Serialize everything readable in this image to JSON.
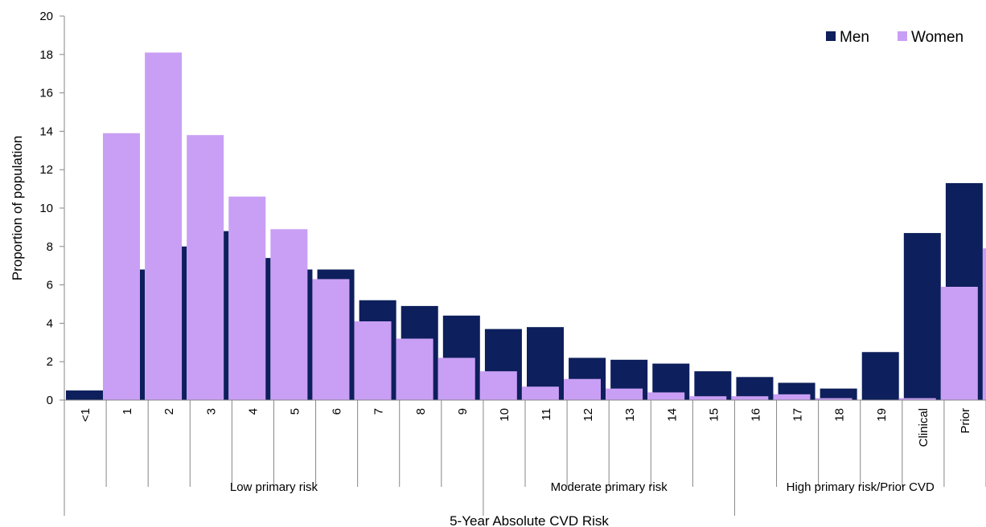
{
  "chart_data": {
    "type": "bar",
    "title": "",
    "xlabel": "5-Year Absolute CVD Risk",
    "ylabel": "Proportion of population",
    "ylim": [
      0,
      20
    ],
    "yticks": [
      0,
      2,
      4,
      6,
      8,
      10,
      12,
      14,
      16,
      18,
      20
    ],
    "grid": false,
    "legend_position": "top-right",
    "categories": [
      "<1",
      "1",
      "2",
      "3",
      "4",
      "5",
      "6",
      "7",
      "8",
      "9",
      "10",
      "11",
      "12",
      "13",
      "14",
      "15",
      "16",
      "17",
      "18",
      "19",
      "Clinical",
      "Prior"
    ],
    "series": [
      {
        "name": "Men",
        "color": "#0d1f5c",
        "values": [
          0.5,
          6.8,
          8.0,
          8.8,
          7.4,
          6.8,
          6.8,
          5.2,
          4.9,
          4.4,
          3.7,
          3.8,
          2.2,
          2.1,
          1.9,
          1.5,
          1.2,
          0.9,
          0.6,
          2.5,
          8.7,
          11.3
        ]
      },
      {
        "name": "Women",
        "color": "#c99ff5",
        "values": [
          13.9,
          18.1,
          13.8,
          10.6,
          8.9,
          6.3,
          4.1,
          3.2,
          2.2,
          1.5,
          0.7,
          1.1,
          0.6,
          0.4,
          0.2,
          0.2,
          0.3,
          0.1,
          0.0,
          0.1,
          5.9,
          7.9
        ]
      }
    ],
    "groups": [
      {
        "label": "Low primary risk",
        "first": 0,
        "last": 9
      },
      {
        "label": "Moderate primary risk",
        "first": 10,
        "last": 15
      },
      {
        "label": "High primary risk/Prior CVD",
        "first": 16,
        "last": 21
      }
    ]
  }
}
